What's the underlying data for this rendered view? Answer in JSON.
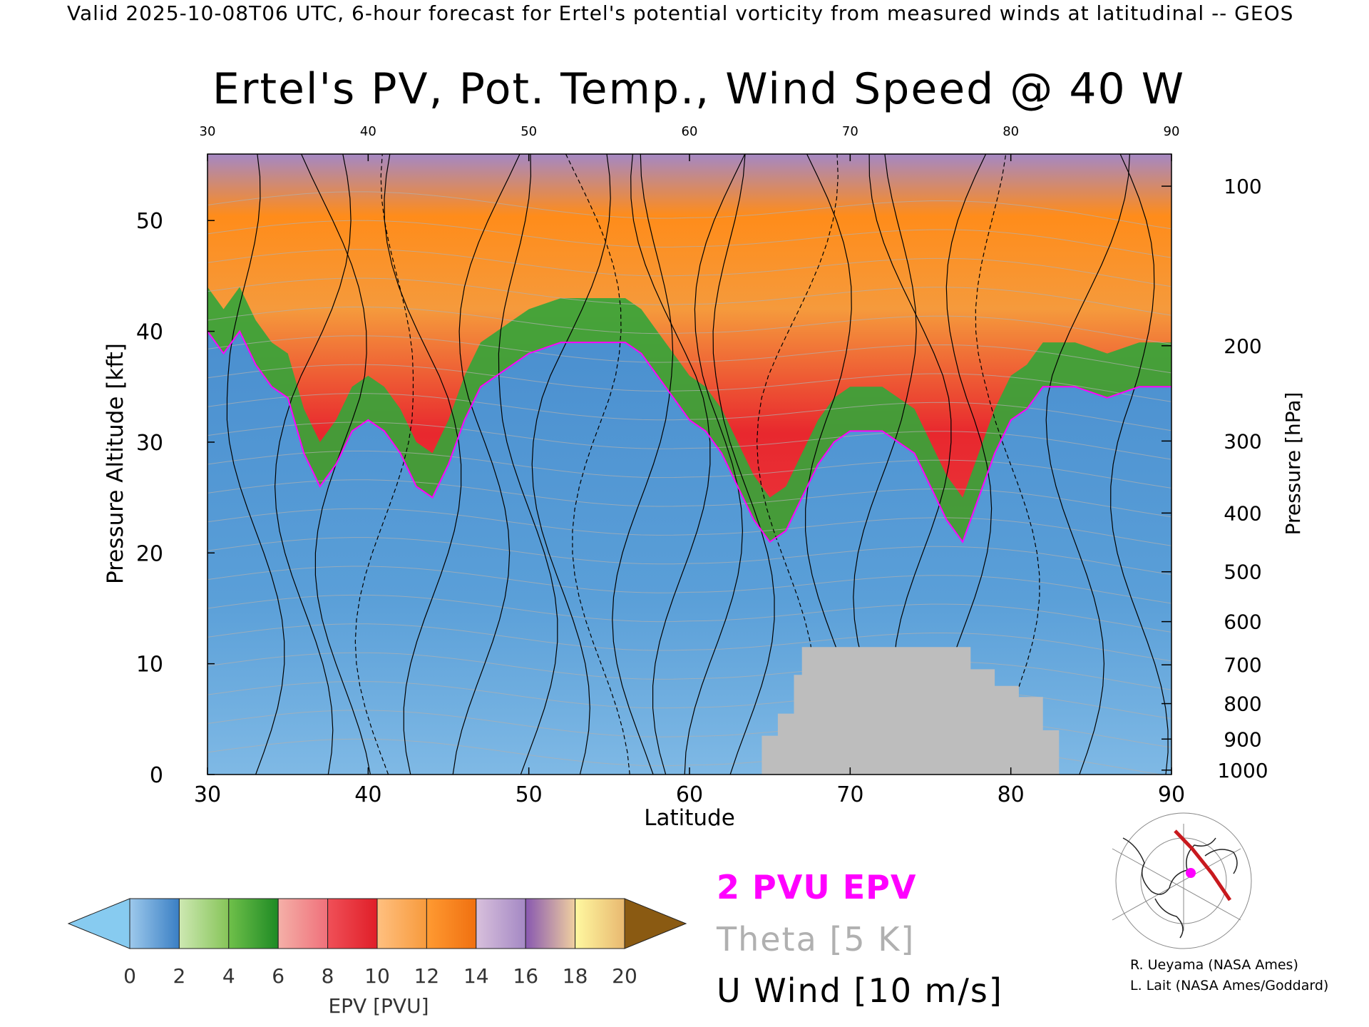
{
  "header": "Valid 2025-10-08T06 UTC, 6-hour forecast for Ertel's potential vorticity from measured winds at latitudinal -- GEOS",
  "title": "Ertel's PV, Pot. Temp., Wind Speed @ 40 W",
  "legend": {
    "epv": "2 PVU EPV",
    "theta": "Theta [5 K]",
    "uwind": "U Wind [10 m/s]",
    "colors": {
      "epv": "#ff00ff",
      "theta": "#b0b0b0",
      "uwind": "#000000"
    }
  },
  "credits": [
    "R. Ueyama (NASA Ames)",
    "L. Lait (NASA Ames/Goddard)"
  ],
  "chart_data": {
    "type": "heatmap",
    "title": "Ertel's PV, Pot. Temp., Wind Speed @ 40 W",
    "xlabel": "Latitude",
    "ylabel": "Pressure Altitude [kft]",
    "y2label": "Pressure [hPa]",
    "xlim": [
      30,
      90
    ],
    "ylim": [
      0,
      56
    ],
    "xticks": [
      30,
      40,
      50,
      60,
      70,
      80,
      90
    ],
    "yticks": [
      0,
      10,
      20,
      30,
      40,
      50
    ],
    "pressure_ticks": [
      {
        "hpa": 100,
        "kft": 53.1
      },
      {
        "hpa": 200,
        "kft": 38.7
      },
      {
        "hpa": 300,
        "kft": 30.1
      },
      {
        "hpa": 400,
        "kft": 23.6
      },
      {
        "hpa": 500,
        "kft": 18.3
      },
      {
        "hpa": 600,
        "kft": 13.8
      },
      {
        "hpa": 700,
        "kft": 9.9
      },
      {
        "hpa": 800,
        "kft": 6.4
      },
      {
        "hpa": 900,
        "kft": 3.2
      },
      {
        "hpa": 1000,
        "kft": 0.4
      }
    ],
    "colorbar": {
      "label": "EPV [PVU]",
      "ticks": [
        0,
        2,
        4,
        6,
        8,
        10,
        12,
        14,
        16,
        18,
        20
      ],
      "levels": [
        {
          "from": 0,
          "to": 2,
          "colors": [
            "#9dc9ec",
            "#3a7fc4"
          ]
        },
        {
          "from": 2,
          "to": 4,
          "colors": [
            "#cde8b2",
            "#86c458"
          ]
        },
        {
          "from": 4,
          "to": 6,
          "colors": [
            "#6fc04a",
            "#1e8a24"
          ]
        },
        {
          "from": 6,
          "to": 8,
          "colors": [
            "#f4b0a8",
            "#f0707a"
          ]
        },
        {
          "from": 8,
          "to": 10,
          "colors": [
            "#f05058",
            "#e01e28"
          ]
        },
        {
          "from": 10,
          "to": 12,
          "colors": [
            "#ffc080",
            "#f79a3c"
          ]
        },
        {
          "from": 12,
          "to": 14,
          "colors": [
            "#ff9a32",
            "#f07010"
          ]
        },
        {
          "from": 14,
          "to": 16,
          "colors": [
            "#d8c0dc",
            "#a488c4"
          ]
        },
        {
          "from": 16,
          "to": 18,
          "colors": [
            "#8858b0",
            "#f0d0a0"
          ]
        },
        {
          "from": 18,
          "to": 20,
          "colors": [
            "#fff8a0",
            "#e8b870"
          ]
        }
      ],
      "under_color": "#87cbf0",
      "over_color": "#8a5a12"
    },
    "tropopause_2pvu_kft": [
      {
        "lat": 30,
        "kft": 40
      },
      {
        "lat": 31,
        "kft": 38
      },
      {
        "lat": 32,
        "kft": 40
      },
      {
        "lat": 33,
        "kft": 37
      },
      {
        "lat": 34,
        "kft": 35
      },
      {
        "lat": 35,
        "kft": 34
      },
      {
        "lat": 36,
        "kft": 29
      },
      {
        "lat": 37,
        "kft": 26
      },
      {
        "lat": 38,
        "kft": 28
      },
      {
        "lat": 39,
        "kft": 31
      },
      {
        "lat": 40,
        "kft": 32
      },
      {
        "lat": 41,
        "kft": 31
      },
      {
        "lat": 42,
        "kft": 29
      },
      {
        "lat": 43,
        "kft": 26
      },
      {
        "lat": 44,
        "kft": 25
      },
      {
        "lat": 45,
        "kft": 28
      },
      {
        "lat": 46,
        "kft": 32
      },
      {
        "lat": 47,
        "kft": 35
      },
      {
        "lat": 48,
        "kft": 36
      },
      {
        "lat": 49,
        "kft": 37
      },
      {
        "lat": 50,
        "kft": 38
      },
      {
        "lat": 52,
        "kft": 39
      },
      {
        "lat": 54,
        "kft": 39
      },
      {
        "lat": 56,
        "kft": 39
      },
      {
        "lat": 57,
        "kft": 38
      },
      {
        "lat": 58,
        "kft": 36
      },
      {
        "lat": 59,
        "kft": 34
      },
      {
        "lat": 60,
        "kft": 32
      },
      {
        "lat": 61,
        "kft": 31
      },
      {
        "lat": 62,
        "kft": 29
      },
      {
        "lat": 63,
        "kft": 26
      },
      {
        "lat": 64,
        "kft": 23
      },
      {
        "lat": 65,
        "kft": 21
      },
      {
        "lat": 66,
        "kft": 22
      },
      {
        "lat": 67,
        "kft": 25
      },
      {
        "lat": 68,
        "kft": 28
      },
      {
        "lat": 69,
        "kft": 30
      },
      {
        "lat": 70,
        "kft": 31
      },
      {
        "lat": 72,
        "kft": 31
      },
      {
        "lat": 74,
        "kft": 29
      },
      {
        "lat": 75,
        "kft": 26
      },
      {
        "lat": 76,
        "kft": 23
      },
      {
        "lat": 77,
        "kft": 21
      },
      {
        "lat": 78,
        "kft": 25
      },
      {
        "lat": 79,
        "kft": 29
      },
      {
        "lat": 80,
        "kft": 32
      },
      {
        "lat": 81,
        "kft": 33
      },
      {
        "lat": 82,
        "kft": 35
      },
      {
        "lat": 84,
        "kft": 35
      },
      {
        "lat": 86,
        "kft": 34
      },
      {
        "lat": 88,
        "kft": 35
      },
      {
        "lat": 90,
        "kft": 35
      }
    ],
    "topography_kft": [
      {
        "lat": 60,
        "kft": 0
      },
      {
        "lat": 64.5,
        "kft": 0
      },
      {
        "lat": 64.5,
        "kft": 3.5
      },
      {
        "lat": 65.5,
        "kft": 3.5
      },
      {
        "lat": 65.5,
        "kft": 5.5
      },
      {
        "lat": 66.5,
        "kft": 5.5
      },
      {
        "lat": 66.5,
        "kft": 9
      },
      {
        "lat": 67,
        "kft": 9
      },
      {
        "lat": 67,
        "kft": 11.5
      },
      {
        "lat": 77.5,
        "kft": 11.5
      },
      {
        "lat": 77.5,
        "kft": 9.5
      },
      {
        "lat": 79,
        "kft": 9.5
      },
      {
        "lat": 79,
        "kft": 8
      },
      {
        "lat": 80.5,
        "kft": 8
      },
      {
        "lat": 80.5,
        "kft": 7
      },
      {
        "lat": 82,
        "kft": 7
      },
      {
        "lat": 82,
        "kft": 4
      },
      {
        "lat": 83,
        "kft": 4
      },
      {
        "lat": 83,
        "kft": 0
      }
    ]
  }
}
